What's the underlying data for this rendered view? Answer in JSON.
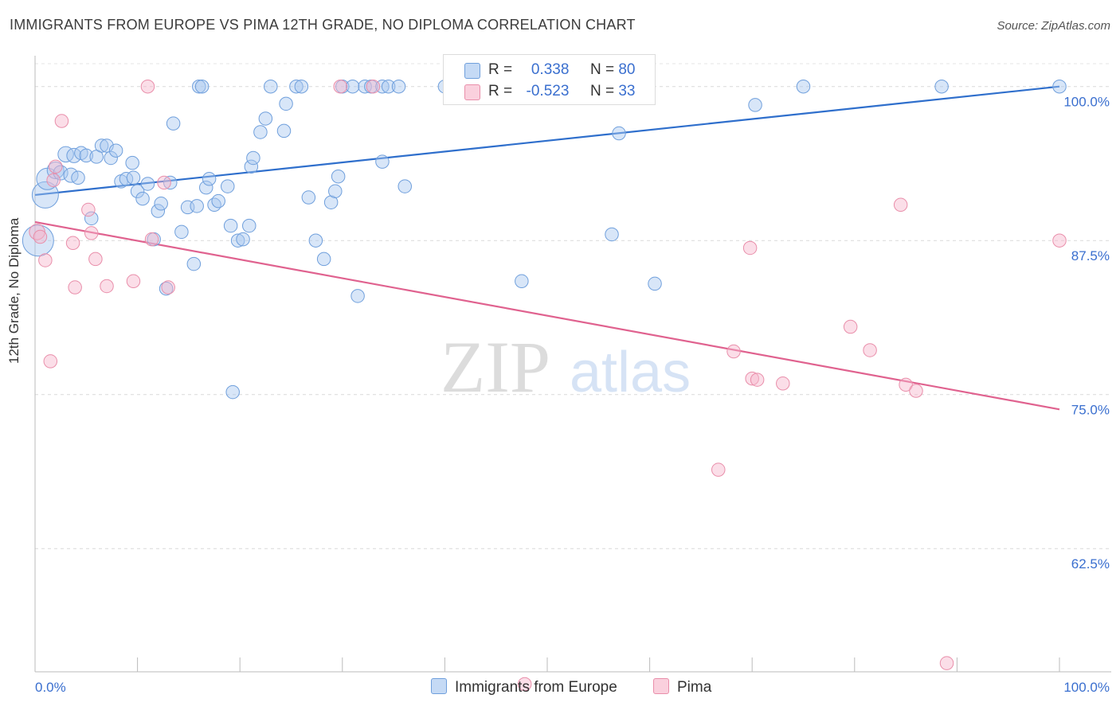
{
  "header": {
    "title": "IMMIGRANTS FROM EUROPE VS PIMA 12TH GRADE, NO DIPLOMA CORRELATION CHART",
    "source": "Source: ZipAtlas.com"
  },
  "watermark": {
    "zip": "ZIP",
    "atlas": "atlas"
  },
  "legend": {
    "r_label": "R =",
    "n_label": "N =",
    "series": [
      {
        "name": "Immigrants from Europe",
        "r": "0.338",
        "n": "80",
        "color": "#a9c8ef"
      },
      {
        "name": "Pima",
        "r": "-0.523",
        "n": "33",
        "color": "#f6b6cb"
      }
    ]
  },
  "chart_data": {
    "type": "scatter",
    "title": "IMMIGRANTS FROM EUROPE VS PIMA 12TH GRADE, NO DIPLOMA CORRELATION CHART",
    "xlabel": "",
    "ylabel": "12th Grade, No Diploma",
    "xlim": [
      0,
      100
    ],
    "ylim": [
      52.5,
      102.5
    ],
    "x_ticks": [
      "0.0%",
      "100.0%"
    ],
    "y_ticks": [
      {
        "value": 100.0,
        "label": "100.0%"
      },
      {
        "value": 87.5,
        "label": "87.5%"
      },
      {
        "value": 75.0,
        "label": "75.0%"
      },
      {
        "value": 62.5,
        "label": "62.5%"
      }
    ],
    "grid": true,
    "legend_position": "bottom-center",
    "series": [
      {
        "name": "Immigrants from Europe",
        "color": "#a9c8ef",
        "stroke": "#6f9fdc",
        "trend_color": "#2f6fcc",
        "trend": {
          "x": [
            0,
            100
          ],
          "y": [
            91.2,
            100.0
          ]
        },
        "points": [
          [
            0.3,
            87.5,
            26
          ],
          [
            1.0,
            91.2,
            22
          ],
          [
            1.2,
            92.5,
            18
          ],
          [
            2.0,
            93.2,
            14
          ],
          [
            2.5,
            93.0,
            12
          ],
          [
            3.0,
            94.5,
            13
          ],
          [
            3.5,
            92.8,
            12
          ],
          [
            3.8,
            94.4,
            12
          ],
          [
            4.2,
            92.6,
            11
          ],
          [
            4.5,
            94.6,
            11
          ],
          [
            5.0,
            94.4,
            11
          ],
          [
            5.5,
            89.3,
            11
          ],
          [
            6.0,
            94.3,
            11
          ],
          [
            6.5,
            95.2,
            11
          ],
          [
            7.0,
            95.2,
            11
          ],
          [
            7.4,
            94.2,
            11
          ],
          [
            7.9,
            94.8,
            11
          ],
          [
            8.4,
            92.3,
            11
          ],
          [
            8.9,
            92.5,
            11
          ],
          [
            9.5,
            93.8,
            11
          ],
          [
            9.6,
            92.6,
            11
          ],
          [
            10.0,
            91.5,
            11
          ],
          [
            10.5,
            90.9,
            11
          ],
          [
            11.0,
            92.1,
            11
          ],
          [
            11.6,
            87.6,
            11
          ],
          [
            12.0,
            89.9,
            11
          ],
          [
            12.3,
            90.5,
            11
          ],
          [
            12.8,
            83.6,
            11
          ],
          [
            13.2,
            92.2,
            11
          ],
          [
            13.5,
            97.0,
            11
          ],
          [
            14.3,
            88.2,
            11
          ],
          [
            14.9,
            90.2,
            11
          ],
          [
            15.5,
            85.6,
            11
          ],
          [
            15.8,
            90.3,
            11
          ],
          [
            16.0,
            100.0,
            11
          ],
          [
            16.3,
            100.0,
            11
          ],
          [
            16.7,
            91.8,
            11
          ],
          [
            17.0,
            92.5,
            11
          ],
          [
            17.5,
            90.4,
            11
          ],
          [
            17.9,
            90.7,
            11
          ],
          [
            18.8,
            91.9,
            11
          ],
          [
            19.1,
            88.7,
            11
          ],
          [
            19.3,
            75.2,
            11
          ],
          [
            19.8,
            87.5,
            11
          ],
          [
            20.3,
            87.6,
            11
          ],
          [
            20.9,
            88.7,
            11
          ],
          [
            21.1,
            93.5,
            11
          ],
          [
            21.3,
            94.2,
            11
          ],
          [
            22.0,
            96.3,
            11
          ],
          [
            22.5,
            97.4,
            11
          ],
          [
            23.0,
            100.0,
            11
          ],
          [
            24.3,
            96.4,
            11
          ],
          [
            24.5,
            98.6,
            11
          ],
          [
            25.5,
            100.0,
            11
          ],
          [
            26.0,
            100.0,
            11
          ],
          [
            26.7,
            91.0,
            11
          ],
          [
            27.4,
            87.5,
            11
          ],
          [
            28.2,
            86.0,
            11
          ],
          [
            28.9,
            90.6,
            11
          ],
          [
            29.3,
            91.5,
            11
          ],
          [
            29.6,
            92.7,
            11
          ],
          [
            30.0,
            100.0,
            11
          ],
          [
            31.0,
            100.0,
            11
          ],
          [
            31.5,
            83.0,
            11
          ],
          [
            32.2,
            100.0,
            11
          ],
          [
            32.8,
            100.0,
            11
          ],
          [
            33.9,
            100.0,
            11
          ],
          [
            33.9,
            93.9,
            11
          ],
          [
            34.5,
            100.0,
            11
          ],
          [
            35.5,
            100.0,
            11
          ],
          [
            36.1,
            91.9,
            11
          ],
          [
            40.0,
            100.0,
            11
          ],
          [
            40.8,
            100.0,
            11
          ],
          [
            45.0,
            100.0,
            11
          ],
          [
            47.5,
            84.2,
            11
          ],
          [
            56.0,
            100.0,
            11
          ],
          [
            56.3,
            88.0,
            11
          ],
          [
            57.0,
            96.2,
            11
          ],
          [
            60.5,
            84.0,
            11
          ],
          [
            70.3,
            98.5,
            11
          ],
          [
            75.0,
            100.0,
            11
          ],
          [
            88.5,
            100.0,
            11
          ],
          [
            100.0,
            100.0,
            11
          ]
        ]
      },
      {
        "name": "Pima",
        "color": "#f6b6cb",
        "stroke": "#e98eaa",
        "trend_color": "#e0628f",
        "trend": {
          "x": [
            0,
            100
          ],
          "y": [
            89.0,
            73.8
          ]
        },
        "points": [
          [
            0.2,
            88.2,
            13
          ],
          [
            0.5,
            87.8,
            11
          ],
          [
            1.0,
            85.9,
            11
          ],
          [
            1.5,
            77.7,
            11
          ],
          [
            1.8,
            92.4,
            11
          ],
          [
            2.0,
            93.5,
            11
          ],
          [
            2.6,
            97.2,
            11
          ],
          [
            3.7,
            87.3,
            11
          ],
          [
            3.9,
            83.7,
            11
          ],
          [
            5.2,
            90.0,
            11
          ],
          [
            5.5,
            88.1,
            11
          ],
          [
            5.9,
            86.0,
            11
          ],
          [
            7.0,
            83.8,
            11
          ],
          [
            9.6,
            84.2,
            11
          ],
          [
            11.0,
            100.0,
            11
          ],
          [
            11.4,
            87.6,
            11
          ],
          [
            12.6,
            92.2,
            11
          ],
          [
            13.0,
            83.7,
            11
          ],
          [
            29.8,
            100.0,
            11
          ],
          [
            33.0,
            100.0,
            11
          ],
          [
            47.8,
            51.5,
            11
          ],
          [
            66.7,
            68.9,
            11
          ],
          [
            68.2,
            78.5,
            11
          ],
          [
            69.8,
            86.9,
            11
          ],
          [
            70.0,
            76.3,
            11
          ],
          [
            70.5,
            76.2,
            11
          ],
          [
            73.0,
            75.9,
            11
          ],
          [
            79.6,
            80.5,
            11
          ],
          [
            81.5,
            78.6,
            11
          ],
          [
            84.5,
            90.4,
            11
          ],
          [
            85.0,
            75.8,
            11
          ],
          [
            86.0,
            75.3,
            11
          ],
          [
            89.0,
            53.2,
            11
          ],
          [
            100.0,
            87.5,
            11
          ]
        ]
      }
    ]
  }
}
